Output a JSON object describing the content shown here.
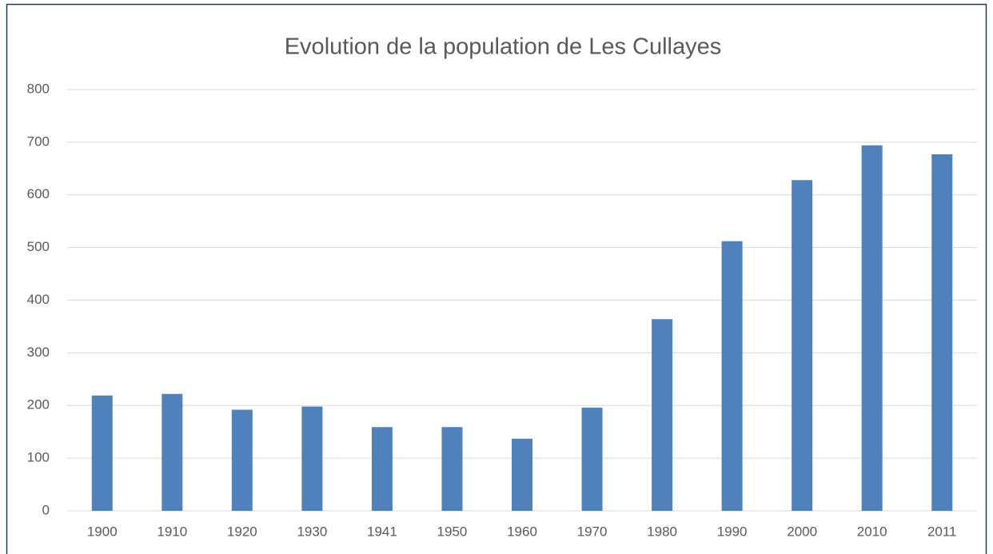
{
  "chart_data": {
    "type": "bar",
    "title": "Evolution de la population de Les Cullayes",
    "categories": [
      "1900",
      "1910",
      "1920",
      "1930",
      "1941",
      "1950",
      "1960",
      "1970",
      "1980",
      "1990",
      "2000",
      "2010",
      "2011"
    ],
    "values": [
      219,
      222,
      192,
      198,
      159,
      159,
      137,
      196,
      364,
      512,
      628,
      694,
      677
    ],
    "color": "#4f81bd",
    "ylim": [
      0,
      800
    ],
    "yticks": [
      0,
      100,
      200,
      300,
      400,
      500,
      600,
      700,
      800
    ],
    "grid": true
  }
}
